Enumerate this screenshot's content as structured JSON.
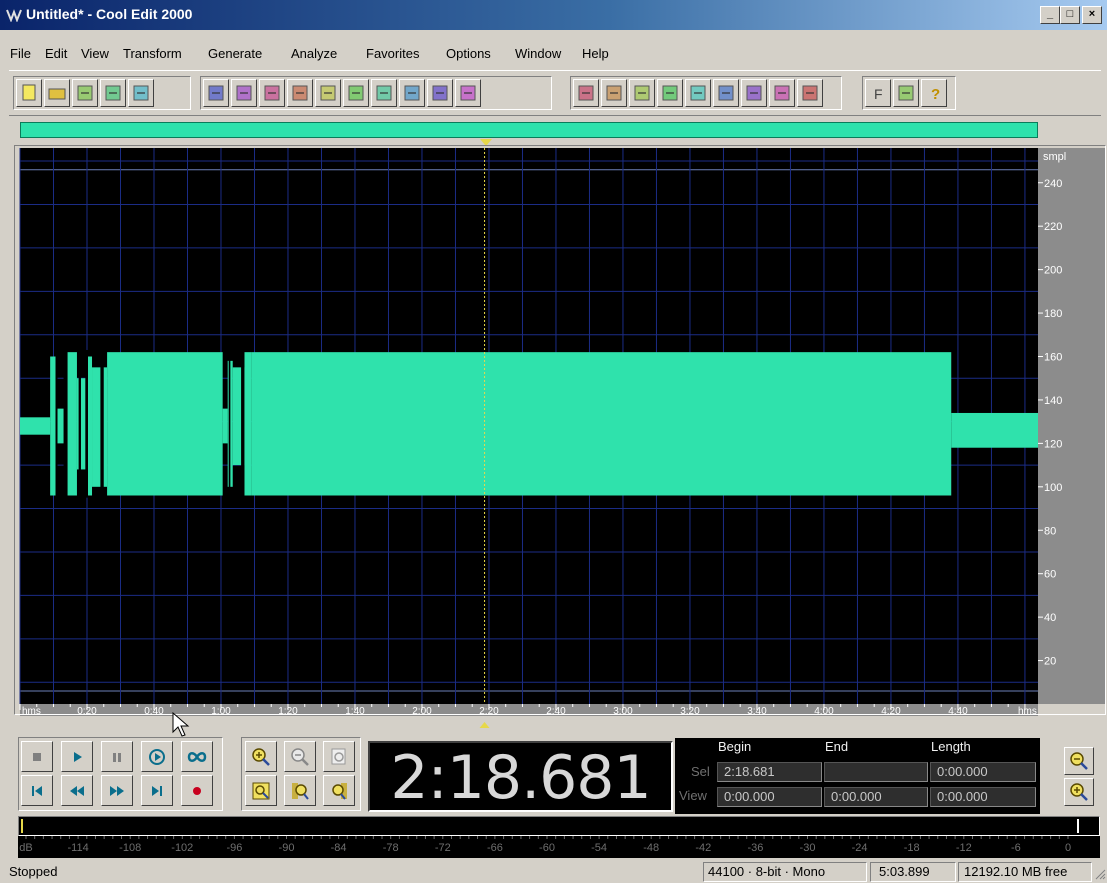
{
  "window": {
    "title": "Untitled* - Cool Edit 2000"
  },
  "menu": [
    "File",
    "Edit",
    "View",
    "Transform",
    "Generate",
    "Analyze",
    "Favorites",
    "Options",
    "Window",
    "Help"
  ],
  "toolbar_icons": [
    "new-file-icon",
    "open-file-icon",
    "save-icon",
    "save-all-icon",
    "close-file-icon",
    "undo-icon",
    "repeat-icon",
    "cut-wave-icon",
    "copy-icon",
    "copy-to-new-icon",
    "scissors-icon",
    "paste-icon",
    "paste-new-icon",
    "mix-paste-icon",
    "trim-icon",
    "loop-icon",
    "waveform-view-icon",
    "spectral-view-icon",
    "grid-a-icon",
    "grid-b-icon",
    "grid-c-icon",
    "cd-icon",
    "preview-icon",
    "cd-burn-icon",
    "frequency-icon",
    "script-icon",
    "help-icon"
  ],
  "waveform": {
    "colors": {
      "background": "#000000",
      "wave": "#2fe2ac",
      "grid": "#1b2c86",
      "cursor": "#e6d84a"
    },
    "y_unit": "smpl",
    "y_ticks": [
      "240",
      "220",
      "200",
      "180",
      "160",
      "140",
      "120",
      "100",
      "80",
      "60",
      "40",
      "20"
    ],
    "x_unit": "hms",
    "x_ticks": [
      "0:20",
      "0:40",
      "1:00",
      "1:20",
      "1:40",
      "2:00",
      "2:20",
      "2:40",
      "3:00",
      "3:20",
      "3:40",
      "4:00",
      "4:20",
      "4:40"
    ],
    "cursor_time": "2:18.681"
  },
  "transport": {
    "buttons": [
      {
        "name": "stop-button",
        "icon": "stop-icon"
      },
      {
        "name": "play-button",
        "icon": "play-icon"
      },
      {
        "name": "pause-button",
        "icon": "pause-icon"
      },
      {
        "name": "play-to-end-button",
        "icon": "play-to-end-icon"
      },
      {
        "name": "loop-button",
        "icon": "loop-infinity-icon"
      },
      {
        "name": "go-to-start-button",
        "icon": "skip-back-icon"
      },
      {
        "name": "rewind-button",
        "icon": "rewind-icon"
      },
      {
        "name": "fast-forward-button",
        "icon": "fast-forward-icon"
      },
      {
        "name": "go-to-end-button",
        "icon": "skip-forward-icon"
      },
      {
        "name": "record-button",
        "icon": "record-icon"
      }
    ],
    "zoom_buttons": [
      "zoom-in-icon",
      "zoom-out-icon",
      "zoom-full-icon",
      "zoom-selection-icon",
      "zoom-left-icon",
      "zoom-right-icon"
    ]
  },
  "time_display": "2:18.681",
  "selection": {
    "headers": {
      "begin": "Begin",
      "end": "End",
      "length": "Length"
    },
    "sel_label": "Sel",
    "view_label": "View",
    "sel_begin": "2:18.681",
    "sel_end": "",
    "sel_length": "0:00.000",
    "view_begin": "0:00.000",
    "view_end": "0:00.000",
    "view_length": "0:00.000"
  },
  "meter_scale": [
    "dB",
    "-114",
    "-108",
    "-102",
    "-96",
    "-90",
    "-84",
    "-78",
    "-72",
    "-66",
    "-60",
    "-54",
    "-48",
    "-42",
    "-36",
    "-30",
    "-24",
    "-18",
    "-12",
    "-6",
    "0"
  ],
  "status": {
    "state": "Stopped",
    "format": "44100 · 8-bit · Mono",
    "duration": "5:03.899",
    "free_space": "12192.10 MB free"
  }
}
